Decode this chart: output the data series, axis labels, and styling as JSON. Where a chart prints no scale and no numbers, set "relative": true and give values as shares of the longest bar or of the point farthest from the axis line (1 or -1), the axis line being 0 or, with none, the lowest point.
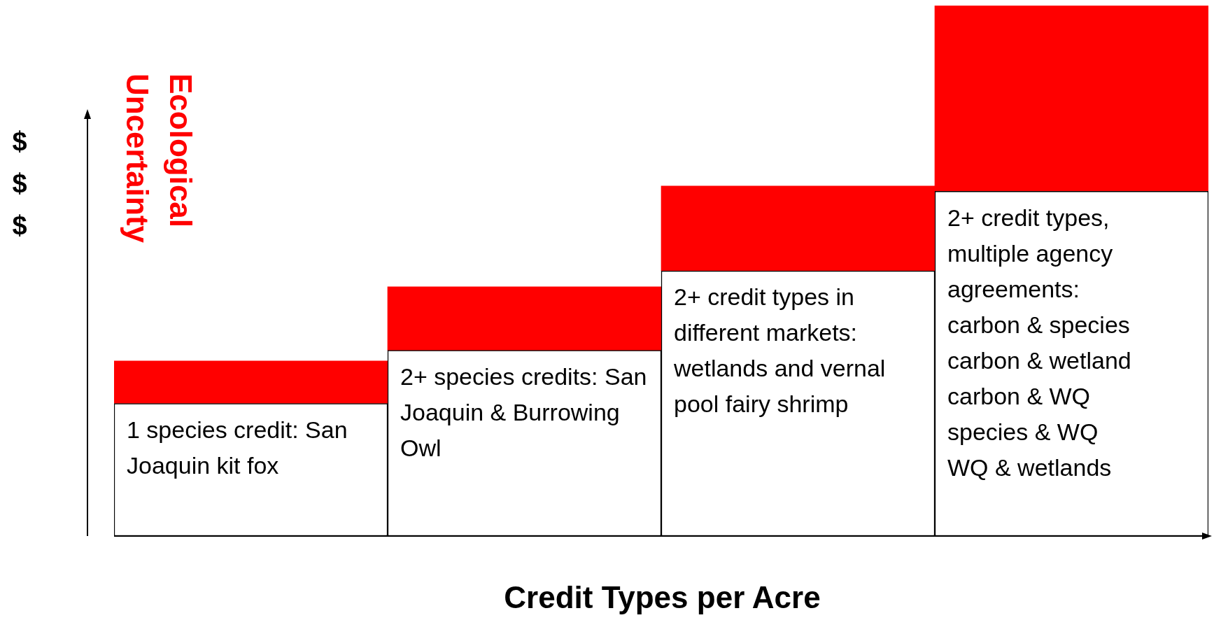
{
  "chart_data": {
    "type": "bar",
    "xlabel": "Credit Types per Acre",
    "ylabel": "$ $ $",
    "stacked": true,
    "relative": true,
    "categories": [
      "1 species credit: San Joaquin kit fox",
      "2+ species credits: San Joaquin & Burrowing Owl",
      "2+ credit types in different markets: wetlands and vernal pool fairy shrimp",
      "2+ credit types, multiple agency agreements:\ncarbon & species\ncarbon & wetland\ncarbon & WQ\nspecies & WQ\nWQ & wetlands"
    ],
    "series": [
      {
        "color": "#ffffff",
        "values": [
          0.25,
          0.35,
          0.5,
          0.65
        ]
      },
      {
        "name": "Ecological Uncertainty",
        "color": "#ff0000",
        "values": [
          0.08,
          0.12,
          0.16,
          0.35
        ]
      }
    ]
  }
}
